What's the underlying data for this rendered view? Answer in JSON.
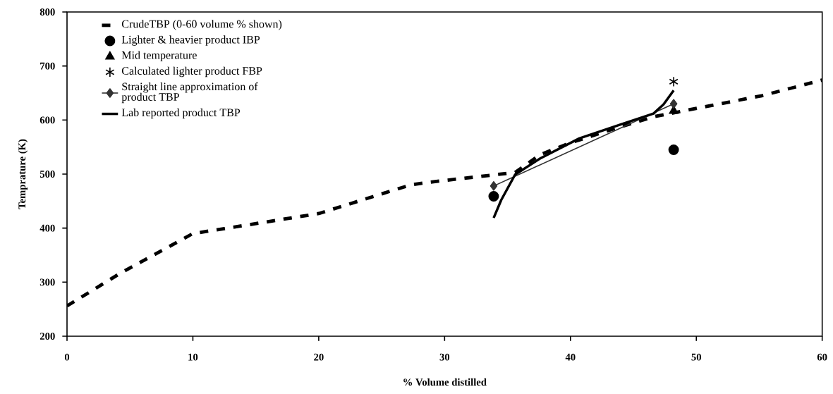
{
  "chart_data": {
    "type": "line",
    "xlabel": "% Volume distilled",
    "ylabel": "Temprature (K)",
    "xlim": [
      0,
      60
    ],
    "xticks": [
      0,
      10,
      20,
      30,
      40,
      50,
      60
    ],
    "ylim": [
      200,
      800
    ],
    "yticks": [
      200,
      300,
      400,
      500,
      600,
      700,
      800
    ],
    "legend": "top left",
    "series": [
      {
        "name": "CrudeTBP (0-60 volume % shown)",
        "type": "line",
        "line_style": "dashed",
        "marker": "none",
        "color": "#000000",
        "x": [
          0,
          4.2,
          10,
          12.5,
          20,
          27.3,
          28.8,
          35.6,
          37.6,
          39.9,
          42.8,
          46.6,
          49,
          55.2,
          60
        ],
        "values": [
          256,
          316,
          390,
          399,
          427,
          480,
          485,
          503,
          536,
          557,
          579,
          606,
          617,
          645,
          674
        ]
      },
      {
        "name": "Lighter & heavier product IBP",
        "type": "scatter",
        "marker": "circle",
        "color": "#000000",
        "x": [
          33.9,
          48.2
        ],
        "values": [
          459,
          545
        ]
      },
      {
        "name": "Mid temperature",
        "type": "scatter",
        "marker": "triangle",
        "color": "#000000",
        "x": [
          48.2
        ],
        "values": [
          617
        ]
      },
      {
        "name": "Calculated lighter product FBP",
        "type": "scatter",
        "marker": "cross",
        "color": "#000000",
        "x": [
          48.2
        ],
        "values": [
          671
        ]
      },
      {
        "name": "Straight line approximation of product TBP",
        "type": "line",
        "line_style": "solid",
        "marker": "diamond",
        "color": "#333333",
        "x": [
          33.9,
          48.2
        ],
        "values": [
          478,
          630
        ]
      },
      {
        "name": "Lab reported product TBP",
        "type": "line",
        "line_style": "solid",
        "marker": "none",
        "color": "#000000",
        "x": [
          33.9,
          34.5,
          35.6,
          37.6,
          40.7,
          43.9,
          46.6,
          47.4,
          48.2
        ],
        "values": [
          419,
          452,
          499,
          529,
          566,
          591,
          612,
          629,
          655
        ]
      }
    ]
  }
}
